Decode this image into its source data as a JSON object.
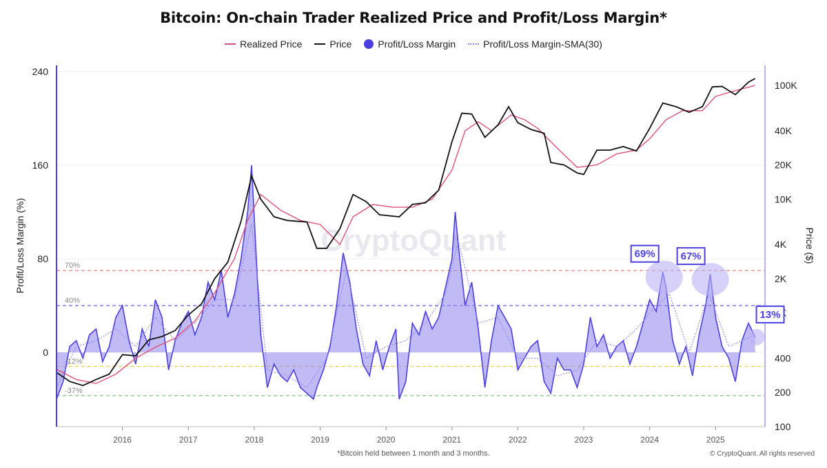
{
  "title": "Bitcoin: On-chain Trader Realized Price and Profit/Loss Margin*",
  "legend": [
    {
      "label": "Realized Price",
      "color": "#e0507a",
      "style": "line"
    },
    {
      "label": "Price",
      "color": "#111111",
      "style": "line"
    },
    {
      "label": "Profit/Loss Margin",
      "color": "#4b3fe0",
      "style": "dot"
    },
    {
      "label": "Profit/Loss Margin-SMA(30)",
      "color": "#8f87f0",
      "style": "dash"
    }
  ],
  "footnote": "*Bitcoin held between 1 month and 3 months.",
  "copyright": "© CryptoQuant. All rights reserved",
  "watermark": "CryptoQuant",
  "chart_data": {
    "type": "line",
    "left_axis": {
      "label": "Profit/Loss Margin (%)",
      "range": [
        -37,
        240
      ],
      "ticks": [
        "240",
        "160",
        "80",
        "0"
      ]
    },
    "right_axis": {
      "label": "Price ($)",
      "scale": "log",
      "range": [
        100,
        150000
      ],
      "ticks": [
        "100K",
        "40K",
        "20K",
        "10K",
        "4K",
        "2K",
        "1K",
        "400",
        "200",
        "100"
      ]
    },
    "x_axis": {
      "range": [
        2015.0,
        2025.75
      ],
      "ticks": [
        "2016",
        "2017",
        "2018",
        "2019",
        "2020",
        "2021",
        "2022",
        "2023",
        "2024",
        "2025"
      ]
    },
    "reference_lines": [
      {
        "value": 70,
        "label": "70%",
        "color": "#e88080"
      },
      {
        "value": 40,
        "label": "40%",
        "color": "#6b60e8"
      },
      {
        "value": -12,
        "label": "-12%",
        "color": "#e6d640"
      },
      {
        "value": -37,
        "label": "-37%",
        "color": "#7cc47c"
      }
    ],
    "annotations": [
      {
        "text": "69%",
        "x": 2024.22,
        "y": 69
      },
      {
        "text": "67%",
        "x": 2024.92,
        "y": 67
      },
      {
        "text": "13%",
        "x": 2025.62,
        "y": 13
      }
    ],
    "series": [
      {
        "name": "Price",
        "axis": "right",
        "color": "#111111",
        "x": [
          2015.0,
          2015.2,
          2015.4,
          2015.6,
          2015.8,
          2016.0,
          2016.2,
          2016.4,
          2016.6,
          2016.8,
          2017.0,
          2017.2,
          2017.4,
          2017.6,
          2017.8,
          2017.96,
          2018.1,
          2018.3,
          2018.5,
          2018.8,
          2018.95,
          2019.1,
          2019.3,
          2019.5,
          2019.7,
          2019.9,
          2020.2,
          2020.4,
          2020.6,
          2020.8,
          2021.0,
          2021.15,
          2021.3,
          2021.5,
          2021.7,
          2021.86,
          2022.0,
          2022.2,
          2022.4,
          2022.5,
          2022.7,
          2022.9,
          2023.0,
          2023.2,
          2023.4,
          2023.6,
          2023.8,
          2024.0,
          2024.2,
          2024.4,
          2024.6,
          2024.8,
          2024.95,
          2025.1,
          2025.3,
          2025.5,
          2025.6
        ],
        "y": [
          300,
          250,
          230,
          260,
          290,
          430,
          420,
          580,
          620,
          700,
          960,
          1200,
          2000,
          2800,
          6400,
          16000,
          10000,
          7000,
          6500,
          6300,
          3700,
          3700,
          5500,
          11000,
          9500,
          7300,
          7000,
          9000,
          9300,
          12000,
          32000,
          57000,
          56000,
          35000,
          45000,
          65000,
          47000,
          41000,
          38000,
          21000,
          20000,
          17000,
          16500,
          27000,
          27000,
          29000,
          26500,
          42000,
          70000,
          65000,
          58000,
          65000,
          97000,
          98000,
          83000,
          107000,
          115000
        ]
      },
      {
        "name": "Realized Price",
        "axis": "right",
        "color": "#e0507a",
        "x": [
          2015.0,
          2015.3,
          2015.6,
          2015.9,
          2016.2,
          2016.5,
          2016.8,
          2017.1,
          2017.4,
          2017.7,
          2017.9,
          2018.1,
          2018.4,
          2018.7,
          2019.0,
          2019.3,
          2019.5,
          2019.8,
          2020.1,
          2020.4,
          2020.7,
          2021.0,
          2021.2,
          2021.4,
          2021.6,
          2021.9,
          2022.1,
          2022.3,
          2022.6,
          2022.9,
          2023.2,
          2023.5,
          2023.8,
          2024.0,
          2024.25,
          2024.5,
          2024.8,
          2025.0,
          2025.3,
          2025.6
        ],
        "y": [
          320,
          260,
          240,
          290,
          400,
          500,
          600,
          850,
          1500,
          3000,
          6500,
          11000,
          8000,
          6500,
          6000,
          4000,
          7000,
          9000,
          8500,
          8500,
          10000,
          18000,
          40000,
          48000,
          40000,
          55000,
          50000,
          42000,
          28000,
          19000,
          20000,
          25000,
          27000,
          34000,
          50000,
          60000,
          60000,
          80000,
          90000,
          100000
        ]
      },
      {
        "name": "Profit/Loss Margin",
        "axis": "left",
        "color": "#4b3fe0",
        "x": [
          2015.0,
          2015.1,
          2015.2,
          2015.3,
          2015.4,
          2015.5,
          2015.6,
          2015.7,
          2015.8,
          2015.9,
          2016.0,
          2016.1,
          2016.2,
          2016.3,
          2016.4,
          2016.5,
          2016.6,
          2016.7,
          2016.8,
          2016.9,
          2017.0,
          2017.1,
          2017.2,
          2017.3,
          2017.4,
          2017.5,
          2017.6,
          2017.7,
          2017.8,
          2017.9,
          2017.96,
          2018.05,
          2018.1,
          2018.2,
          2018.3,
          2018.4,
          2018.5,
          2018.6,
          2018.7,
          2018.8,
          2018.9,
          2018.95,
          2019.05,
          2019.15,
          2019.25,
          2019.35,
          2019.45,
          2019.55,
          2019.65,
          2019.75,
          2019.85,
          2019.95,
          2020.05,
          2020.15,
          2020.2,
          2020.3,
          2020.4,
          2020.5,
          2020.6,
          2020.7,
          2020.8,
          2020.9,
          2021.0,
          2021.05,
          2021.1,
          2021.2,
          2021.3,
          2021.4,
          2021.5,
          2021.6,
          2021.7,
          2021.8,
          2021.9,
          2022.0,
          2022.1,
          2022.2,
          2022.3,
          2022.4,
          2022.5,
          2022.6,
          2022.7,
          2022.8,
          2022.9,
          2023.0,
          2023.1,
          2023.2,
          2023.3,
          2023.4,
          2023.5,
          2023.6,
          2023.7,
          2023.8,
          2023.9,
          2024.0,
          2024.1,
          2024.2,
          2024.25,
          2024.35,
          2024.45,
          2024.55,
          2024.65,
          2024.75,
          2024.85,
          2024.92,
          2025.0,
          2025.1,
          2025.2,
          2025.3,
          2025.4,
          2025.5,
          2025.6
        ],
        "y": [
          -40,
          -25,
          5,
          10,
          -5,
          15,
          20,
          -8,
          5,
          30,
          40,
          10,
          -10,
          20,
          5,
          45,
          30,
          -15,
          10,
          25,
          35,
          15,
          30,
          60,
          45,
          70,
          30,
          50,
          80,
          120,
          160,
          60,
          15,
          -30,
          -10,
          -20,
          -25,
          -15,
          -30,
          -35,
          -40,
          -30,
          -15,
          5,
          40,
          85,
          60,
          20,
          -10,
          -20,
          10,
          -15,
          5,
          20,
          -40,
          -25,
          25,
          15,
          35,
          20,
          30,
          55,
          80,
          120,
          90,
          40,
          60,
          20,
          -30,
          10,
          40,
          30,
          20,
          -15,
          -5,
          5,
          10,
          -25,
          -35,
          -5,
          -15,
          -15,
          -30,
          -10,
          30,
          5,
          15,
          -5,
          5,
          10,
          -10,
          5,
          25,
          45,
          35,
          69,
          55,
          10,
          -10,
          5,
          -20,
          15,
          40,
          67,
          30,
          5,
          -5,
          -25,
          10,
          25,
          13
        ]
      },
      {
        "name": "Profit/Loss Margin-SMA(30)",
        "axis": "left",
        "color": "#8f87f0",
        "x": [
          2015.0,
          2015.3,
          2015.6,
          2015.9,
          2016.2,
          2016.5,
          2016.8,
          2017.1,
          2017.4,
          2017.7,
          2017.96,
          2018.2,
          2018.5,
          2018.8,
          2019.1,
          2019.4,
          2019.7,
          2020.0,
          2020.3,
          2020.6,
          2020.9,
          2021.1,
          2021.4,
          2021.7,
          2022.0,
          2022.3,
          2022.6,
          2022.9,
          2023.2,
          2023.5,
          2023.8,
          2024.1,
          2024.3,
          2024.6,
          2024.9,
          2025.2,
          2025.6
        ],
        "y": [
          -30,
          5,
          10,
          20,
          5,
          30,
          10,
          25,
          45,
          45,
          110,
          -15,
          -20,
          -30,
          -5,
          70,
          -5,
          5,
          10,
          25,
          50,
          95,
          25,
          30,
          -5,
          -5,
          -20,
          -15,
          10,
          5,
          20,
          40,
          50,
          0,
          50,
          5,
          15
        ]
      }
    ]
  }
}
